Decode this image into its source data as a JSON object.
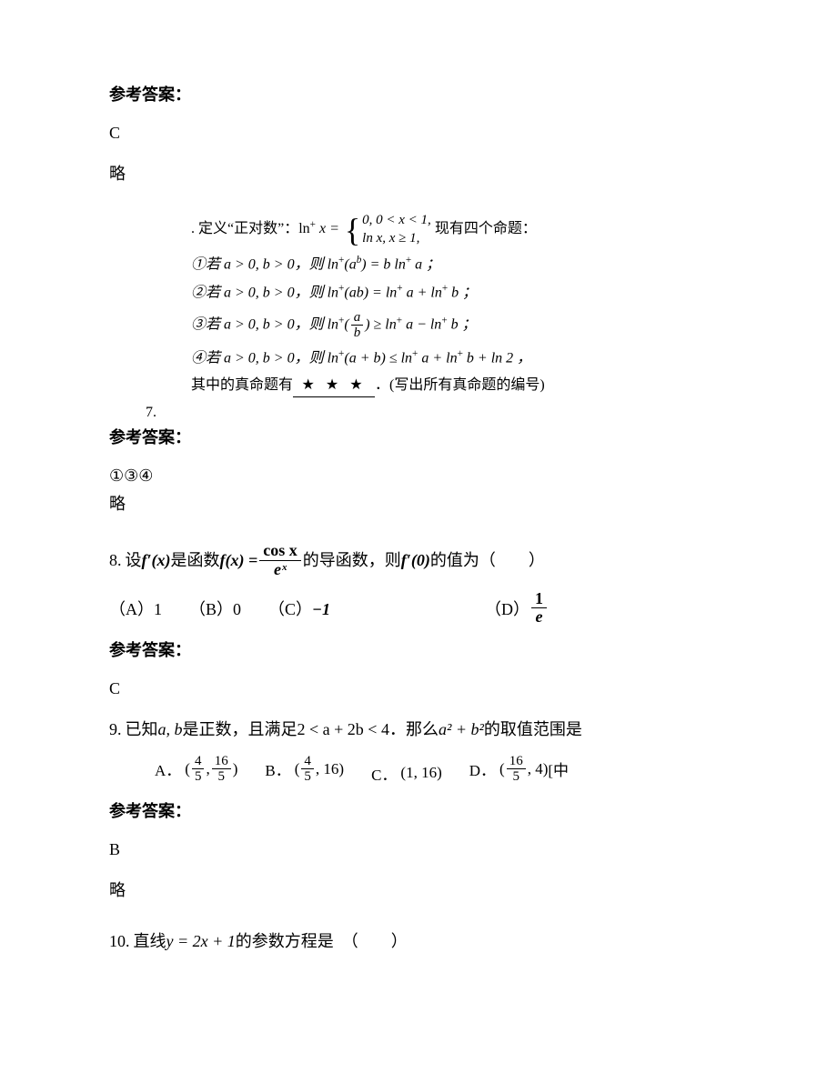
{
  "labels": {
    "answer_heading": "参考答案：",
    "omit": "略"
  },
  "q_pre": {
    "answer": "C"
  },
  "q7": {
    "number": "7.",
    "def_prefix": ". 定义“正对数”：ln",
    "def_eq": " x =",
    "case1": "0, 0 < x < 1,",
    "case2": "ln x, x ≥ 1,",
    "def_suffix": "现有四个命题：",
    "p1_pre": "①若 a > 0, b > 0，则 ln",
    "p1_mid": "(a",
    "p1_sup": "b",
    "p1_post": ") = b ln",
    "p1_end": " a ；",
    "p2_pre": "②若 a > 0, b > 0，则 ln",
    "p2_mid": "(ab) = ln",
    "p2_mid2": " a + ln",
    "p2_end": " b ；",
    "p3_pre": "③若 a > 0, b > 0，则 ln",
    "p3_open": "(",
    "p3_frac_num": "a",
    "p3_frac_den": "b",
    "p3_close": ") ≥ ln",
    "p3_mid": " a − ln",
    "p3_end": " b ；",
    "p4_pre": "④若 a > 0, b > 0，则 ln",
    "p4_mid": "(a + b) ≤ ln",
    "p4_mid2": " a + ln",
    "p4_mid3": " b + ln 2 ，",
    "tail_pre": "其中的真命题有",
    "blank": "★ ★ ★",
    "tail_post": "．(写出所有真命题的编号)",
    "answer": "①③④"
  },
  "q8": {
    "number": "8.",
    "pre": " 设",
    "fprime": "f′(x)",
    "mid1": "是函数",
    "feq_left": "f(x) =",
    "frac_num": "cos x",
    "frac_den": "eˣ",
    "mid2": " 的导函数，则",
    "fprime0": "f′(0)",
    "tail": "的值为（　　）",
    "optA": "（A）1",
    "optB": "（B）0",
    "optC_pre": "（C）",
    "optC_val": "−1",
    "optD_pre": "（D）",
    "optD_num": "1",
    "optD_den": "e",
    "answer": "C"
  },
  "q9": {
    "number": "9.",
    "pre": " 已知",
    "ab": "a, b",
    "mid1": "是正数，且满足",
    "cond": "2 < a + 2b < 4",
    "mid2": "．那么",
    "expr": "a² + b²",
    "tail": "的取值范围是",
    "A_lbl": "A．",
    "A_open": "(",
    "A_n1": "4",
    "A_d1": "5",
    "A_comma": ", ",
    "A_n2": "16",
    "A_d2": "5",
    "A_close": ")",
    "B_lbl": "B．",
    "B_open": "(",
    "B_n1": "4",
    "B_d1": "5",
    "B_rest": ", 16)",
    "C_lbl": "C．",
    "C_val": "(1, 16)",
    "D_lbl": "D．",
    "D_open": "(",
    "D_n1": "16",
    "D_d1": "5",
    "D_rest": ", 4)",
    "D_tail": " [中",
    "answer": "B"
  },
  "q10": {
    "number": "10.",
    "pre": " 直线",
    "eq": "y = 2x + 1",
    "tail": "的参数方程是　（　　）"
  }
}
